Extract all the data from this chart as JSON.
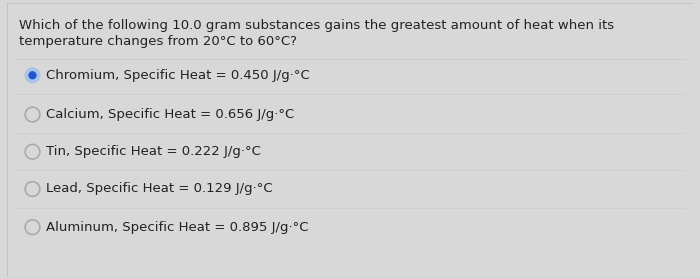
{
  "question_line1": "Which of the following 10.0 gram substances gains the greatest amount of heat when its",
  "question_line2": "temperature changes from 20°C to 60°C?",
  "options": [
    {
      "text": "Chromium, Specific Heat = 0.450 J/g·°C",
      "selected": true
    },
    {
      "text": "Calcium, Specific Heat = 0.656 J/g·°C",
      "selected": false
    },
    {
      "text": "Tin, Specific Heat = 0.222 J/g·°C",
      "selected": false
    },
    {
      "text": "Lead, Specific Heat = 0.129 J/g·°C",
      "selected": false
    },
    {
      "text": "Aluminum, Specific Heat = 0.895 J/g·°C",
      "selected": false
    }
  ],
  "bg_color": "#d8d8d8",
  "card_color": "#f2f2f2",
  "text_color": "#222222",
  "selected_outer_color": "#a8c4e8",
  "selected_inner_color": "#2255cc",
  "unselected_color": "#aaaaaa",
  "divider_color": "#cccccc",
  "question_fontsize": 9.5,
  "option_fontsize": 9.5,
  "fig_width": 7.0,
  "fig_height": 2.79,
  "dpi": 100
}
